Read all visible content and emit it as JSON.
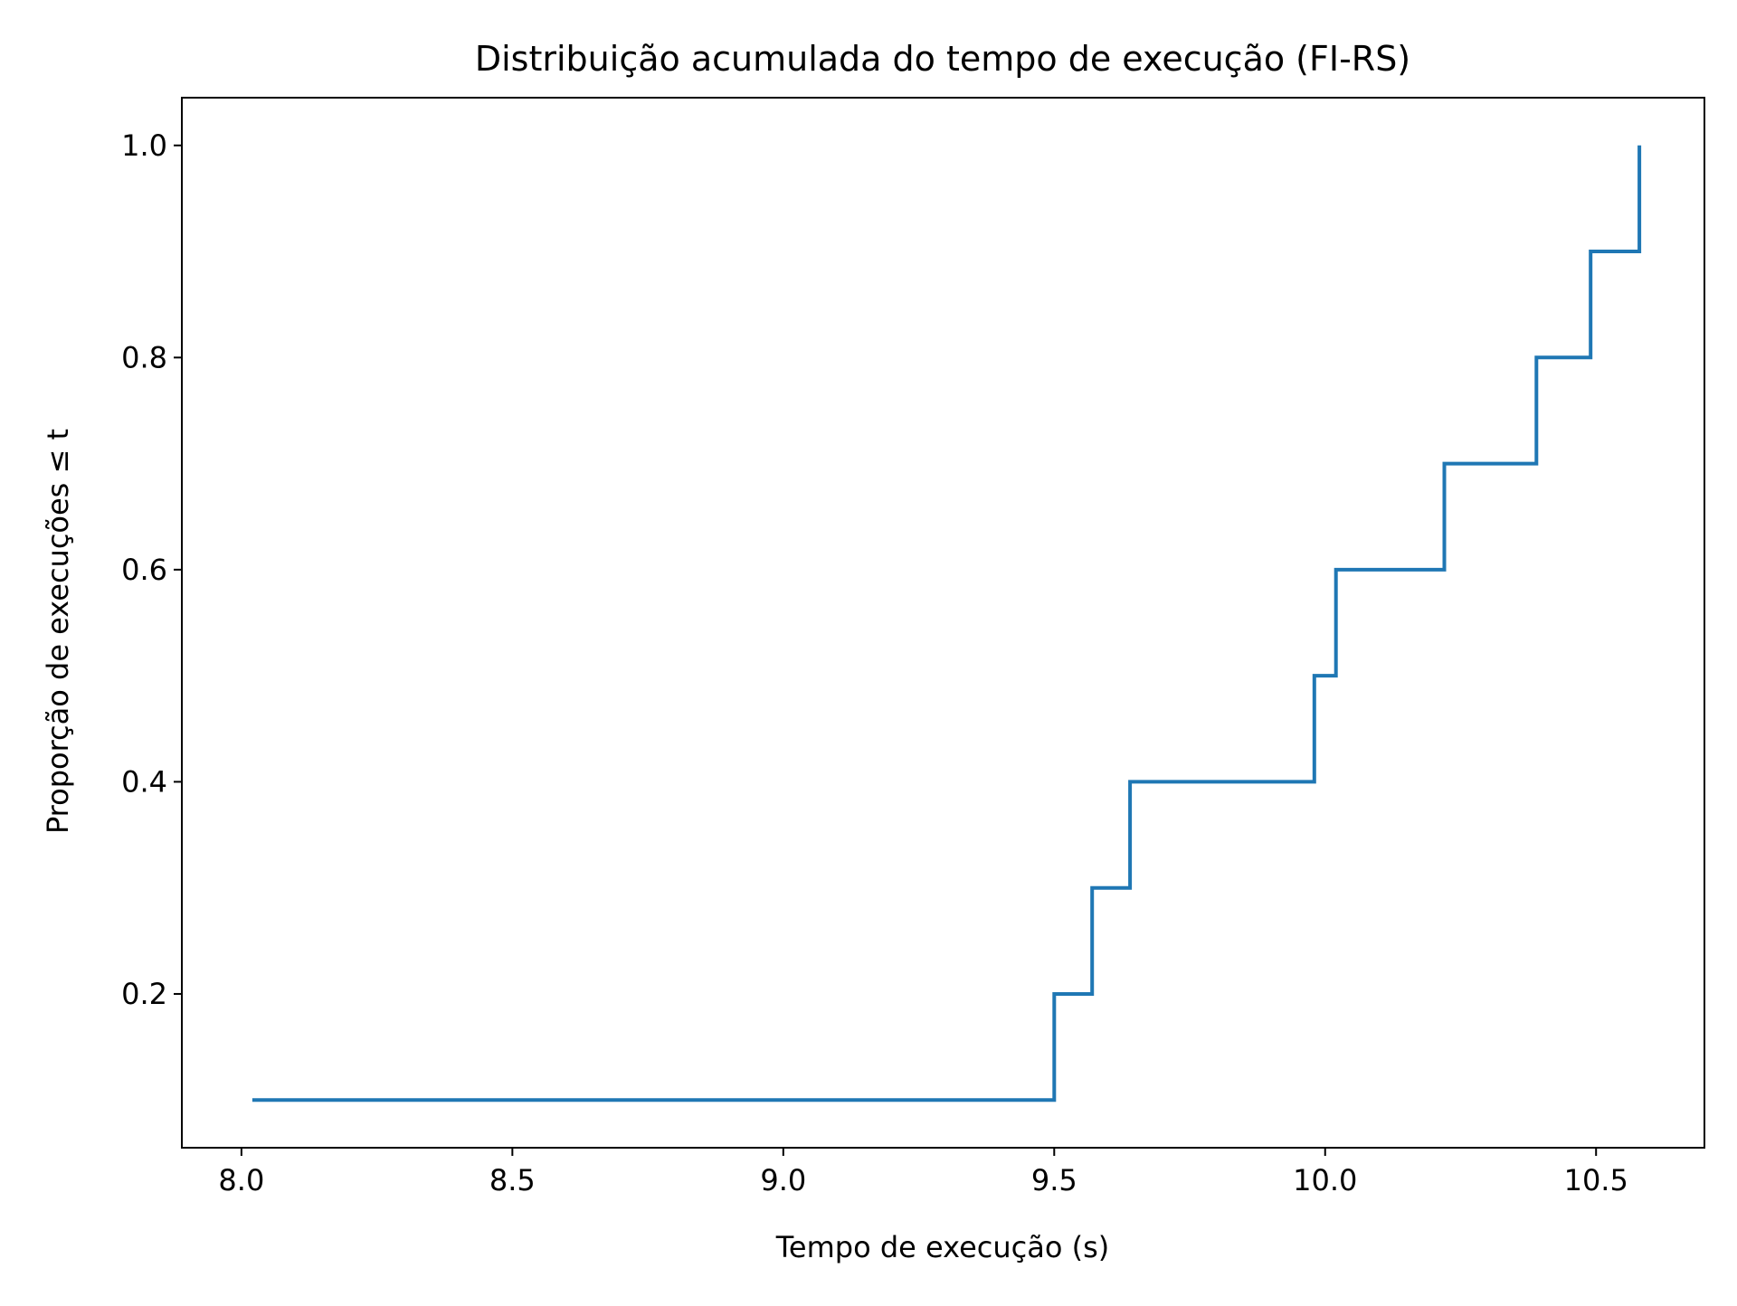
{
  "chart_data": {
    "type": "line",
    "title": "Distribuição acumulada do tempo de execução (FI-RS)",
    "xlabel": "Tempo de execução (s)",
    "ylabel": "Proporção de execuções ≤ t",
    "xlim": [
      7.89,
      10.7
    ],
    "ylim": [
      0.055,
      1.045
    ],
    "grid": false,
    "legend": "none",
    "x_ticks": [
      8.0,
      8.5,
      9.0,
      9.5,
      10.0,
      10.5
    ],
    "x_tick_labels": [
      "8.0",
      "8.5",
      "9.0",
      "9.5",
      "10.0",
      "10.5"
    ],
    "y_ticks": [
      0.2,
      0.4,
      0.6,
      0.8,
      1.0
    ],
    "y_tick_labels": [
      "0.2",
      "0.4",
      "0.6",
      "0.8",
      "1.0"
    ],
    "series": [
      {
        "style": "step-post",
        "color": "#1f77b4",
        "x": [
          8.02,
          9.5,
          9.57,
          9.64,
          9.98,
          10.02,
          10.22,
          10.39,
          10.49,
          10.58
        ],
        "y": [
          0.1,
          0.2,
          0.3,
          0.4,
          0.5,
          0.6,
          0.7,
          0.8,
          0.9,
          1.0
        ]
      }
    ]
  }
}
